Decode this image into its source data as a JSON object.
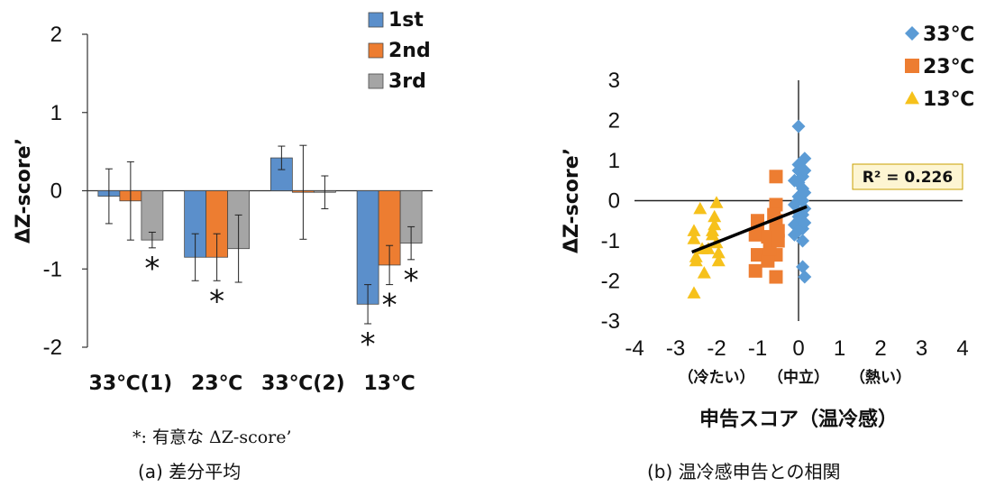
{
  "colors": {
    "first": "#5b8fcb",
    "second": "#ed7d31",
    "third": "#a5a5a5",
    "c33": "#5b9bd5",
    "c23": "#ed7d31",
    "c13": "#f6c11b",
    "r2_bg": "#fdf5d2",
    "r2_border": "#c8a000"
  },
  "captions": {
    "a": "(a)  差分平均",
    "b": "(b)  温冷感申告との相関",
    "note": "*:  有意な ΔZ-score’"
  },
  "chart_data": [
    {
      "type": "bar",
      "ylabel": "ΔZ-score’",
      "ylim": [
        -2,
        2
      ],
      "yticks": [
        "2",
        "1",
        "0",
        "-1",
        "-2"
      ],
      "categories": [
        "33℃(1)",
        "23℃",
        "33℃(2)",
        "13℃"
      ],
      "series": [
        {
          "name": "1st",
          "values": [
            -0.07,
            -0.85,
            0.42,
            -1.45
          ],
          "errors": [
            0.35,
            0.3,
            0.15,
            0.25
          ]
        },
        {
          "name": "2nd",
          "values": [
            -0.13,
            -0.85,
            -0.02,
            -0.95
          ],
          "errors": [
            0.5,
            0.3,
            0.6,
            0.25
          ]
        },
        {
          "name": "3rd",
          "values": [
            -0.63,
            -0.74,
            -0.02,
            -0.67
          ],
          "errors": [
            0.1,
            0.43,
            0.21,
            0.21
          ]
        }
      ],
      "significance": [
        [
          0,
          2
        ],
        [
          1,
          1
        ],
        [
          3,
          0
        ],
        [
          3,
          1
        ],
        [
          3,
          2
        ]
      ],
      "significance_mark": "*",
      "legend": "top-right"
    },
    {
      "type": "scatter",
      "xlabel": "申告スコア（温冷感）",
      "ylabel": "ΔZ-score’",
      "xlim": [
        -4,
        4
      ],
      "ylim": [
        -3,
        3
      ],
      "xticks": [
        "-4",
        "-3",
        "-2",
        "-1",
        "0",
        "1",
        "2",
        "3",
        "4"
      ],
      "yticks": [
        "3",
        "2",
        "1",
        "0",
        "-1",
        "-2",
        "-3"
      ],
      "xsublabels": [
        {
          "x": -2,
          "text": "（冷たい）"
        },
        {
          "x": 0,
          "text": "（中立）"
        },
        {
          "x": 2,
          "text": "（熱い）"
        }
      ],
      "series": [
        {
          "name": "33℃",
          "marker": "diamond",
          "points": [
            [
              0,
              1.85
            ],
            [
              0,
              0.9
            ],
            [
              0,
              0.75
            ],
            [
              0.1,
              0.6
            ],
            [
              -0.1,
              0.5
            ],
            [
              0,
              0.45
            ],
            [
              0.1,
              0.3
            ],
            [
              0.1,
              0.2
            ],
            [
              0,
              0.1
            ],
            [
              0.1,
              0
            ],
            [
              0,
              0
            ],
            [
              -0.1,
              -0.1
            ],
            [
              0,
              -0.3
            ],
            [
              0.1,
              -0.35
            ],
            [
              0,
              -0.5
            ],
            [
              -0.1,
              -0.6
            ],
            [
              0.1,
              -0.7
            ],
            [
              0,
              -0.75
            ],
            [
              -0.1,
              -0.85
            ],
            [
              0.1,
              -1.0
            ],
            [
              0.15,
              0.2
            ],
            [
              0.15,
              0.75
            ],
            [
              0.15,
              -0.2
            ],
            [
              0.15,
              1.05
            ],
            [
              0.1,
              -1.65
            ],
            [
              0.15,
              -1.9
            ],
            [
              0,
              -0.4
            ],
            [
              0.15,
              -0.55
            ]
          ]
        },
        {
          "name": "23℃",
          "marker": "square",
          "points": [
            [
              -0.55,
              0.6
            ],
            [
              -0.55,
              -0.1
            ],
            [
              -0.55,
              -0.5
            ],
            [
              -0.55,
              -0.8
            ],
            [
              -0.55,
              -1.35
            ],
            [
              -0.55,
              -1.9
            ],
            [
              -0.6,
              -0.35
            ],
            [
              -1.0,
              -0.5
            ],
            [
              -1.0,
              -0.6
            ],
            [
              -1.05,
              -0.85
            ],
            [
              -1.0,
              -1.35
            ],
            [
              -1.05,
              -1.75
            ],
            [
              -0.75,
              -1.5
            ],
            [
              -0.75,
              -0.9
            ],
            [
              -0.7,
              -1.2
            ],
            [
              -0.5,
              -0.75
            ],
            [
              -0.5,
              -1.0
            ]
          ]
        },
        {
          "name": "13℃",
          "marker": "triangle",
          "points": [
            [
              -2.55,
              -0.95
            ],
            [
              -2.5,
              -1.4
            ],
            [
              -2.5,
              -1.5
            ],
            [
              -2.55,
              -2.3
            ],
            [
              -2.4,
              -0.2
            ],
            [
              -2.35,
              -1.2
            ],
            [
              -2.3,
              -1.8
            ],
            [
              -2.2,
              -1.2
            ],
            [
              -2.1,
              -0.85
            ],
            [
              -2.05,
              -0.6
            ],
            [
              -2.0,
              -0.05
            ],
            [
              -2.05,
              -0.4
            ],
            [
              -2.0,
              -1.05
            ],
            [
              -1.95,
              -1.3
            ],
            [
              -1.95,
              -1.5
            ],
            [
              -2.55,
              -0.75
            ],
            [
              -2.1,
              -0.75
            ]
          ]
        }
      ],
      "trendline": {
        "x": [
          -2.6,
          0.2
        ],
        "y": [
          -1.28,
          -0.15
        ]
      },
      "r2_label": "R² = 0.226",
      "legend": "top-right"
    }
  ]
}
